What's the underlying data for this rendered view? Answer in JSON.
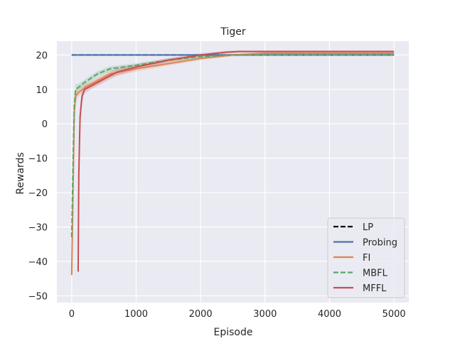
{
  "chart_data": {
    "type": "line",
    "title": "Tiger",
    "xlabel": "Episode",
    "ylabel": "Rewards",
    "xlim": [
      -230,
      5230
    ],
    "ylim": [
      -52,
      24
    ],
    "xticks": [
      0,
      1000,
      2000,
      3000,
      4000,
      5000
    ],
    "yticks": [
      -50,
      -40,
      -30,
      -20,
      -10,
      0,
      10,
      20
    ],
    "grid": true,
    "background": "#eaeaf2",
    "legend_position": "lower-right",
    "series": [
      {
        "name": "LP",
        "color": "#000000",
        "dash": true,
        "x": [
          0,
          5000
        ],
        "y": [
          20,
          20
        ]
      },
      {
        "name": "Probing",
        "color": "#4c72b0",
        "dash": false,
        "x": [
          0,
          5000
        ],
        "y": [
          20,
          20
        ]
      },
      {
        "name": "FI",
        "color": "#dd8452",
        "dash": false,
        "x": [
          0,
          20,
          40,
          60,
          100,
          200,
          400,
          600,
          1000,
          1500,
          2000,
          2500,
          3000,
          4000,
          5000
        ],
        "y": [
          -44,
          -20,
          3,
          8,
          9,
          10.5,
          12.5,
          14.5,
          16,
          17.5,
          19,
          20,
          20.5,
          20.5,
          20.5
        ],
        "band": [
          3,
          4,
          3,
          2,
          1.2,
          1,
          1,
          1,
          0.8,
          0.6,
          0.5,
          0.4,
          0.3,
          0.3,
          0.3
        ]
      },
      {
        "name": "MBFL",
        "color": "#55a868",
        "dash": true,
        "x": [
          0,
          20,
          40,
          60,
          100,
          200,
          400,
          600,
          1000,
          1500,
          2000,
          2500,
          3000,
          4000,
          5000
        ],
        "y": [
          -33,
          -12,
          5,
          10,
          10.5,
          12,
          14.5,
          16,
          17,
          18.5,
          19.5,
          20,
          20,
          20,
          20
        ],
        "band": [
          3,
          4,
          3,
          1.5,
          1,
          0.8,
          0.8,
          0.7,
          0.6,
          0.5,
          0.4,
          0.3,
          0.3,
          0.3,
          0.3
        ]
      },
      {
        "name": "MFFL",
        "color": "#c44e52",
        "dash": false,
        "x": [
          100,
          110,
          130,
          160,
          200,
          300,
          500,
          700,
          1000,
          1500,
          2000,
          2400,
          2600,
          3000,
          4000,
          5000
        ],
        "y": [
          -43,
          -15,
          2,
          8,
          10,
          11,
          13,
          15,
          16.5,
          18.5,
          20,
          20.8,
          21,
          21,
          21,
          21
        ],
        "band": [
          4,
          4,
          3,
          2,
          1.2,
          1,
          1,
          1,
          0.8,
          0.6,
          0.5,
          0.4,
          0.3,
          0.3,
          0.3,
          0.3
        ]
      }
    ]
  }
}
